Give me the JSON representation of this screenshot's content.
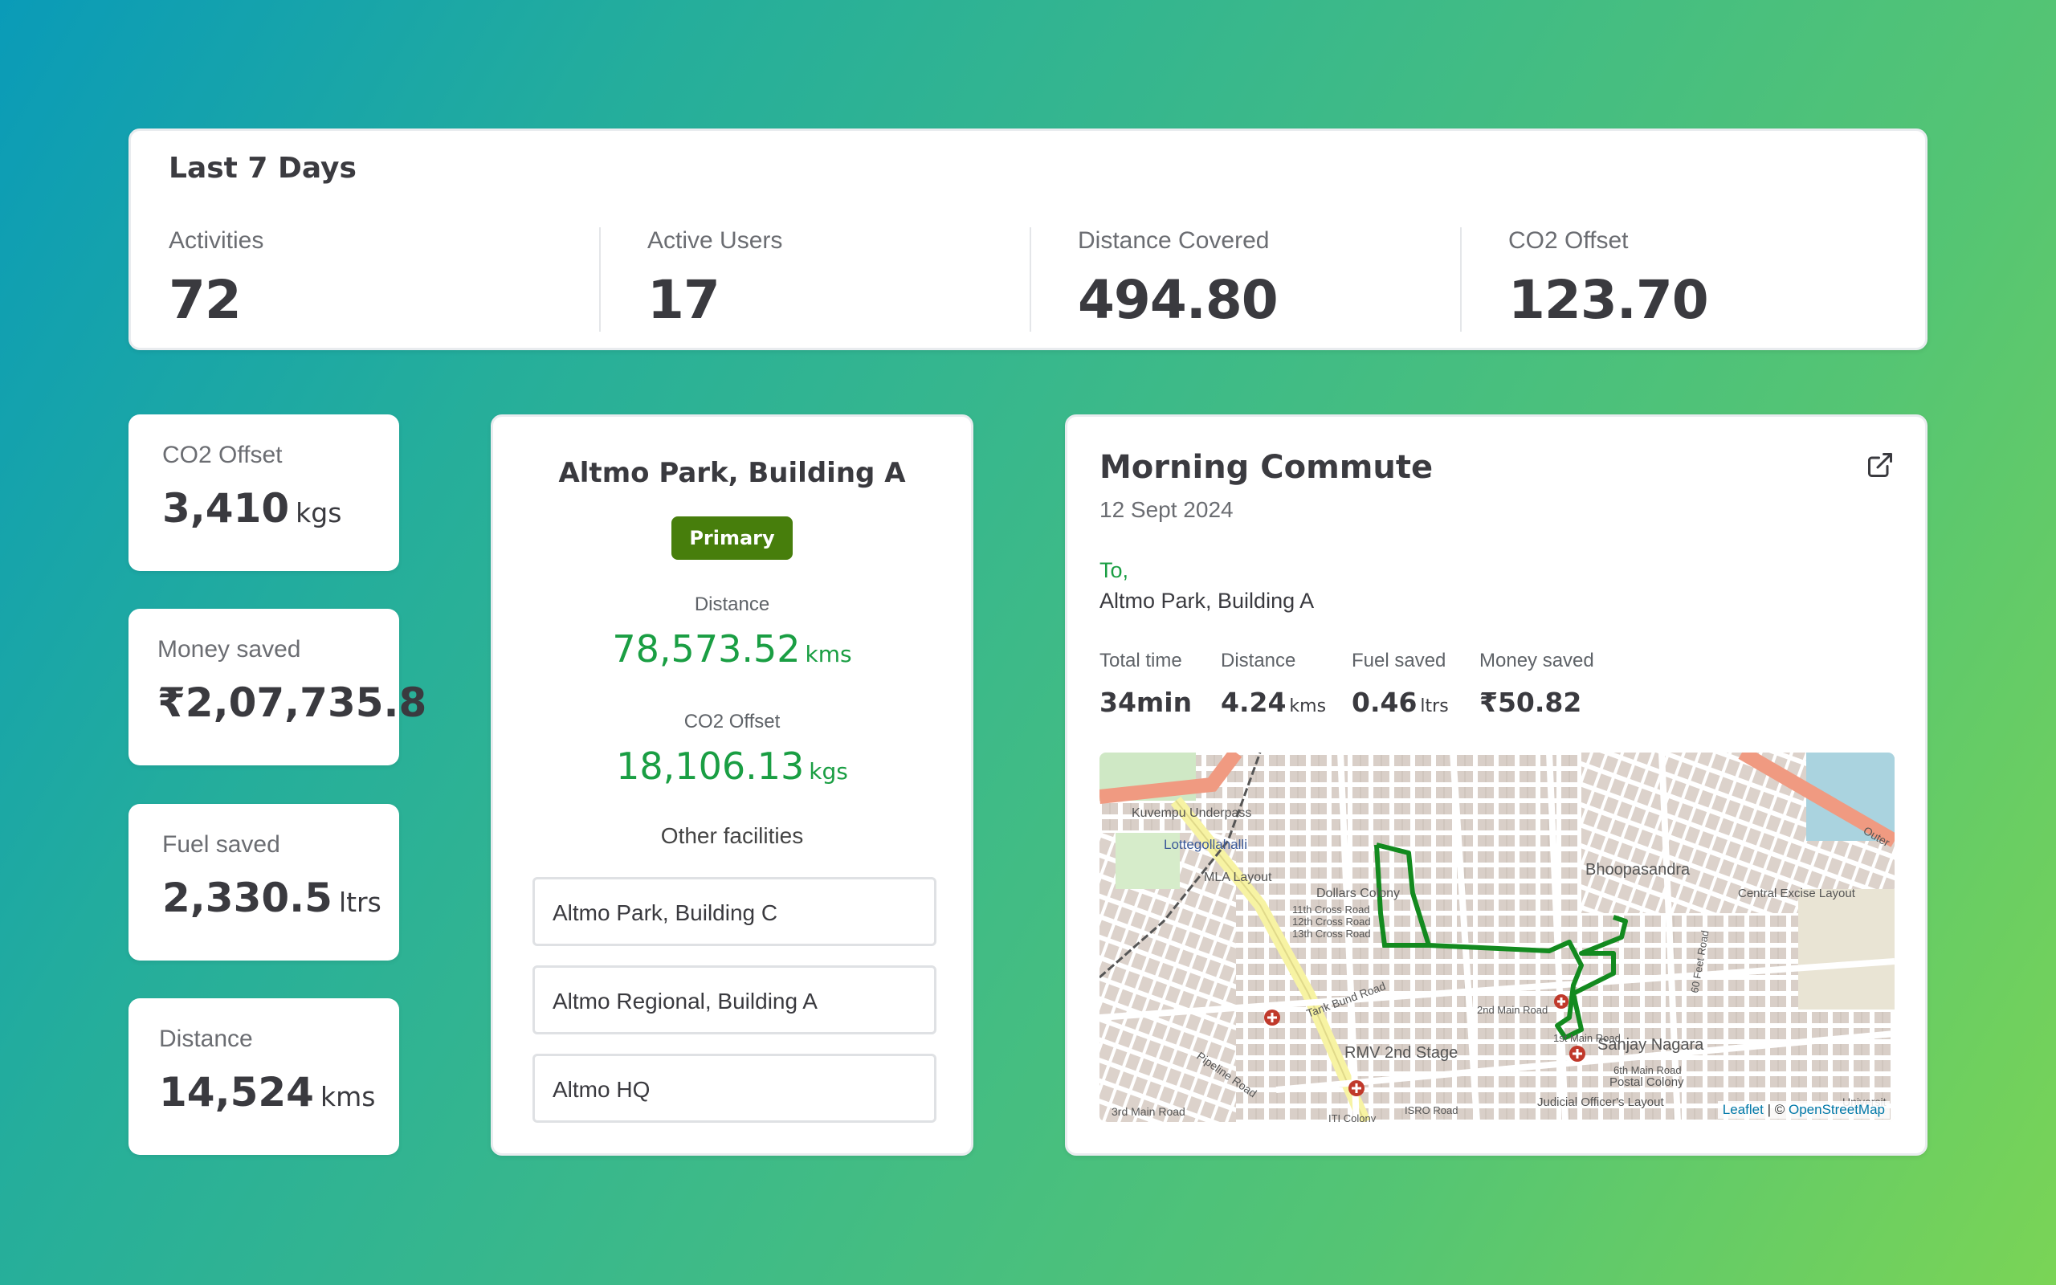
{
  "summary": {
    "title": "Last 7 Days",
    "stats": [
      {
        "label": "Activities",
        "value": "72"
      },
      {
        "label": "Active Users",
        "value": "17"
      },
      {
        "label": "Distance Covered",
        "value": "494.80"
      },
      {
        "label": "CO2 Offset",
        "value": "123.70"
      }
    ]
  },
  "mini_cards": {
    "co2": {
      "label": "CO2 Offset",
      "value": "3,410",
      "unit": "kgs"
    },
    "money": {
      "label": "Money saved",
      "value": "₹2,07,735.8"
    },
    "fuel": {
      "label": "Fuel saved",
      "value": "2,330.5",
      "unit": "ltrs"
    },
    "distance": {
      "label": "Distance",
      "value": "14,524",
      "unit": "kms"
    }
  },
  "facility": {
    "name": "Altmo Park, Building A",
    "badge": "Primary",
    "distance_label": "Distance",
    "distance_value": "78,573.52",
    "distance_unit": "kms",
    "co2_label": "CO2 Offset",
    "co2_value": "18,106.13",
    "co2_unit": "kgs",
    "other_label": "Other facilities",
    "others": [
      "Altmo Park, Building C",
      "Altmo Regional, Building A",
      "Altmo HQ"
    ]
  },
  "commute": {
    "title": "Morning Commute",
    "date": "12 Sept 2024",
    "to_label": "To,",
    "to_value": "Altmo Park, Building A",
    "stats": {
      "time": {
        "label": "Total time",
        "value": "34min"
      },
      "distance": {
        "label": "Distance",
        "value": "4.24",
        "unit": "kms"
      },
      "fuel": {
        "label": "Fuel saved",
        "value": "0.46",
        "unit": "ltrs"
      },
      "money": {
        "label": "Money saved",
        "value": "₹50.82"
      }
    },
    "open_icon": "external-link-icon",
    "map": {
      "labels": [
        "Kuvempu Underpass",
        "Lottegollahalli",
        "MLA Layout",
        "Dollars Colony",
        "11th Cross Road",
        "12th Cross Road",
        "13th Cross Road",
        "Tank Bund Road",
        "RMV 2nd Stage",
        "Pipeline Road",
        "3rd Main Road",
        "Bhoopasandra",
        "Central Excise Layout",
        "Sanjay Nagara",
        "Postal Colony",
        "Judicial Officer's Layout",
        "2nd Main Road",
        "1st Main Road",
        "6th Main Road",
        "ISRO Road",
        "ITI Colony",
        "60 Feet Road",
        "Outer",
        "Universit"
      ],
      "attribution_leaflet": "Leaflet",
      "attribution_sep": "| ©",
      "attribution_osm": "OpenStreetMap"
    }
  },
  "colors": {
    "accent_green": "#1a9e43",
    "badge_green": "#477e0c",
    "route_green": "#138a1f"
  }
}
